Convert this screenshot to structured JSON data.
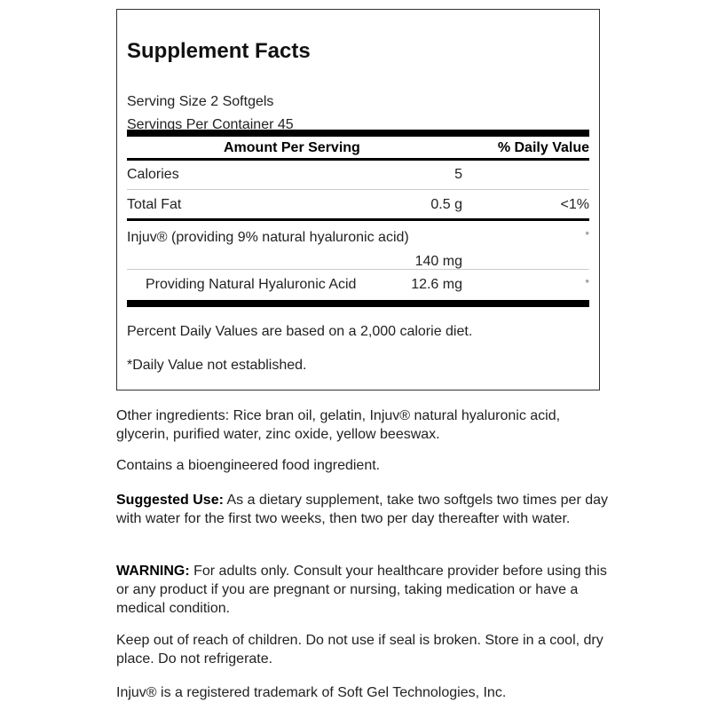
{
  "facts": {
    "title": "Supplement Facts",
    "serving_size": "Serving Size 2 Softgels",
    "servings_per_container": "Servings Per Container 45",
    "header_amount": "Amount Per Serving",
    "header_dv": "% Daily Value",
    "rows": [
      {
        "name": "Calories",
        "amount": "5",
        "dv": ""
      },
      {
        "name": "Total Fat",
        "amount": "0.5 g",
        "dv": "<1%"
      },
      {
        "name": "Injuv® (providing 9% natural hyaluronic acid)",
        "amount": "140 mg",
        "dv": "*"
      },
      {
        "name": "Providing Natural Hyaluronic Acid",
        "amount": "12.6 mg",
        "dv": "*"
      }
    ],
    "footnote1": "Percent Daily Values are based on a 2,000 calorie diet.",
    "footnote2": "*Daily Value not established."
  },
  "text": {
    "other_ingredients": "Other ingredients: Rice bran oil, gelatin, Injuv® natural hyaluronic acid, glycerin, purified water, zinc oxide, yellow beeswax.",
    "bioengineered": "Contains a bioengineered food ingredient.",
    "suggested_label": "Suggested Use:",
    "suggested_body": " As a dietary supplement, take two softgels two times per day with water for the first two weeks, then two per day thereafter with water.",
    "warning_label": "WARNING:",
    "warning_body": " For adults only. Consult your healthcare provider before using this or any product if you are pregnant or nursing, taking medication or have a medical condition.",
    "storage": "Keep out of reach of children. Do not use if seal is broken. Store in a cool, dry place. Do not refrigerate.",
    "trademark": "Injuv® is a registered trademark of Soft Gel Technologies, Inc."
  }
}
